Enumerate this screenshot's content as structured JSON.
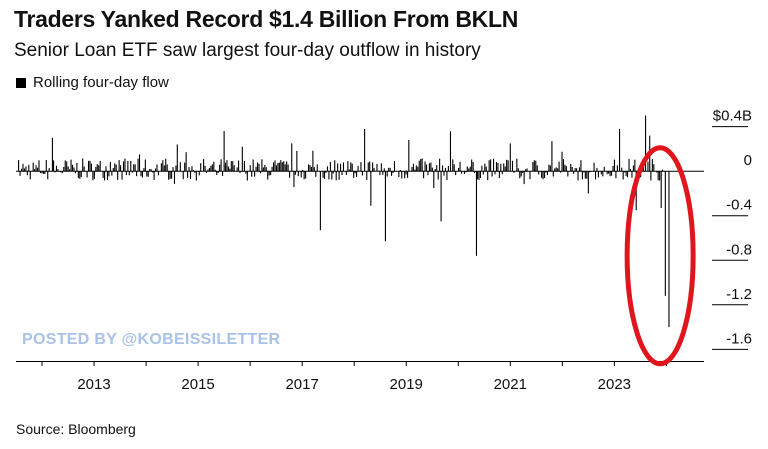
{
  "header": {
    "title": "Traders Yanked Record $1.4 Billion From BKLN",
    "subtitle": "Senior Loan ETF saw largest four-day outflow in history"
  },
  "legend": {
    "label": "Rolling four-day flow",
    "swatch_color": "#000000"
  },
  "watermark": "POSTED BY @KOBEISSILETTER",
  "source": "Source: Bloomberg",
  "highlight": {
    "shape": "ellipse",
    "color": "#e0161c"
  },
  "chart_data": {
    "type": "bar",
    "title": "Traders Yanked Record $1.4 Billion From BKLN",
    "subtitle": "Senior Loan ETF saw largest four-day outflow in history",
    "series_name": "Rolling four-day flow",
    "y_axis_position": "right",
    "ylim": [
      -1.66,
      0.46
    ],
    "xlim": [
      2012.0,
      2025.05
    ],
    "y_ticks": [
      0.4,
      0,
      -0.4,
      -0.8,
      -1.2,
      -1.6
    ],
    "y_tick_labels": [
      "$0.4B",
      "0",
      "-0.4",
      "-0.8",
      "-1.2",
      "-1.6"
    ],
    "x_ticks": [
      2013,
      2015,
      2017,
      2019,
      2021,
      2023
    ],
    "x_tick_labels": [
      "2013",
      "2015",
      "2017",
      "2019",
      "2021",
      "2023"
    ],
    "units": "billions of dollars",
    "notable_points": [
      {
        "x": 2012.7,
        "y": 0.3
      },
      {
        "x": 2015.1,
        "y": 0.24
      },
      {
        "x": 2016.0,
        "y": 0.36
      },
      {
        "x": 2016.35,
        "y": 0.22
      },
      {
        "x": 2017.3,
        "y": 0.25
      },
      {
        "x": 2017.85,
        "y": -0.53
      },
      {
        "x": 2018.7,
        "y": 0.38
      },
      {
        "x": 2018.82,
        "y": -0.31
      },
      {
        "x": 2019.1,
        "y": -0.63
      },
      {
        "x": 2019.55,
        "y": 0.28
      },
      {
        "x": 2020.17,
        "y": -0.45
      },
      {
        "x": 2020.35,
        "y": 0.36
      },
      {
        "x": 2020.85,
        "y": -0.76
      },
      {
        "x": 2021.5,
        "y": 0.25
      },
      {
        "x": 2022.3,
        "y": 0.27
      },
      {
        "x": 2023.0,
        "y": -0.2
      },
      {
        "x": 2023.6,
        "y": 0.38
      },
      {
        "x": 2023.92,
        "y": -0.35
      },
      {
        "x": 2024.1,
        "y": 0.5
      },
      {
        "x": 2024.18,
        "y": 0.32
      },
      {
        "x": 2024.4,
        "y": -0.33
      },
      {
        "x": 2024.48,
        "y": -1.12
      },
      {
        "x": 2024.55,
        "y": -1.4
      }
    ],
    "grid": false
  }
}
